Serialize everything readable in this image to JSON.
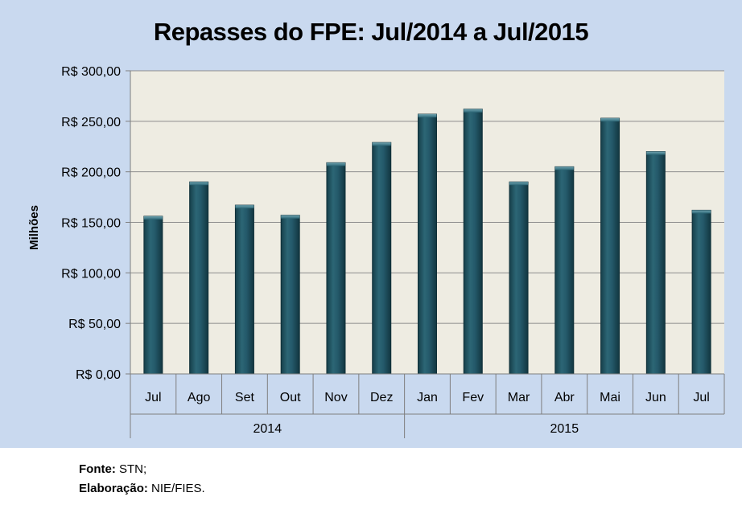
{
  "chart_data": {
    "type": "bar",
    "title": "Repasses do FPE: Jul/2014 a Jul/2015",
    "ylabel": "Milhões",
    "xlabel": "",
    "ylim": [
      0,
      300
    ],
    "ytick_labels": [
      "R$ 0,00",
      "R$ 50,00",
      "R$ 100,00",
      "R$ 150,00",
      "R$ 200,00",
      "R$ 250,00",
      "R$ 300,00"
    ],
    "categories": [
      "Jul",
      "Ago",
      "Set",
      "Out",
      "Nov",
      "Dez",
      "Jan",
      "Fev",
      "Mar",
      "Abr",
      "Mai",
      "Jun",
      "Jul"
    ],
    "groups": [
      {
        "label": "2014",
        "count": 6
      },
      {
        "label": "2015",
        "count": 7
      }
    ],
    "values": [
      156,
      190,
      167,
      157,
      209,
      229,
      257,
      262,
      190,
      205,
      253,
      220,
      162
    ],
    "colors": {
      "bar": "#1f5663",
      "bar_light": "#3f7f8f",
      "plot_bg": "#eeece2",
      "chart_bg": "#c9d9ef",
      "grid": "#8c8c8c"
    }
  },
  "footer": {
    "source_label": "Fonte:",
    "source_value": "STN;",
    "credit_label": "Elaboração:",
    "credit_value": "NIE/FIES."
  }
}
